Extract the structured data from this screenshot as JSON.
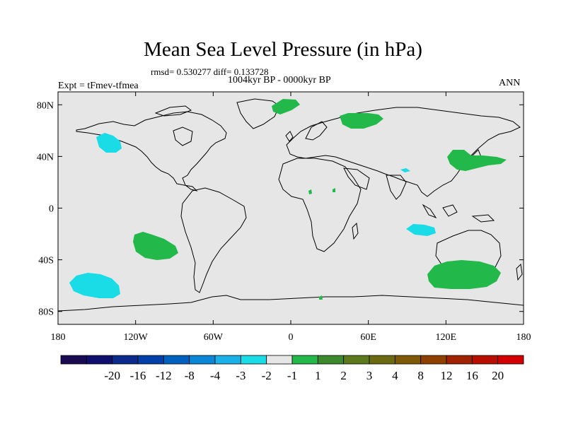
{
  "title": "Mean Sea Level Pressure (in hPa)",
  "stats": "rmsd= 0.530277 diff= 0.133728",
  "period": "1004kyr BP - 0000kyr BP",
  "experiment": "Expt = tFmev-tfmea",
  "season": "ANN",
  "map": {
    "lat_ticks": [
      {
        "label": "80N",
        "value": 80
      },
      {
        "label": "40N",
        "value": 40
      },
      {
        "label": "0",
        "value": 0
      },
      {
        "label": "40S",
        "value": -40
      },
      {
        "label": "80S",
        "value": -80
      }
    ],
    "lon_ticks": [
      {
        "label": "180",
        "value": -180
      },
      {
        "label": "120W",
        "value": -120
      },
      {
        "label": "60W",
        "value": -60
      },
      {
        "label": "0",
        "value": 0
      },
      {
        "label": "60E",
        "value": 60
      },
      {
        "label": "120E",
        "value": 120
      },
      {
        "label": "180",
        "value": 180
      }
    ],
    "background_color": "#e6e6e6"
  },
  "colorbar": {
    "colors": [
      "#1a0a52",
      "#0f106e",
      "#0a2a8c",
      "#0040a8",
      "#0060c0",
      "#0a86d6",
      "#1ab0e8",
      "#19dce6",
      "#e6e6e6",
      "#22b84a",
      "#3d8a2e",
      "#5c7a1c",
      "#6c6a10",
      "#7e5a08",
      "#8e4000",
      "#a02200",
      "#b80e00",
      "#d20000"
    ],
    "labels": [
      "-20",
      "-16",
      "-12",
      "-8",
      "-4",
      "-3",
      "-2",
      "-1",
      "1",
      "2",
      "3",
      "4",
      "8",
      "12",
      "16",
      "20"
    ]
  },
  "anomalies": {
    "positive_color": "#22b84a",
    "negative_color": "#19dce6"
  }
}
